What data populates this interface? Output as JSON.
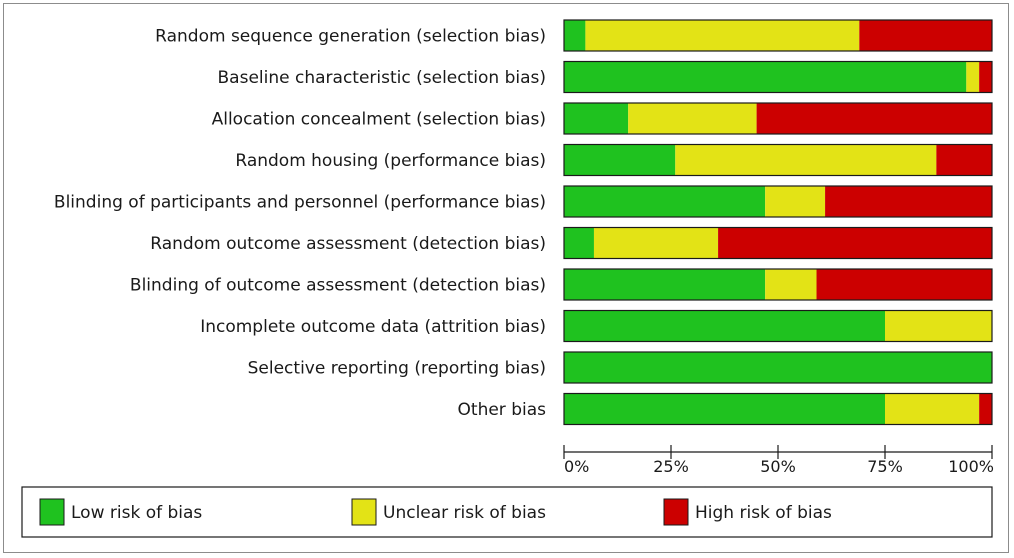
{
  "chart_data": {
    "type": "bar",
    "orientation": "horizontal",
    "stacked": true,
    "percent_scale": true,
    "categories": [
      "Random sequence generation (selection bias)",
      "Baseline characteristic (selection bias)",
      "Allocation concealment (selection bias)",
      "Random housing (performance bias)",
      "Blinding of participants and personnel (performance bias)",
      "Random outcome assessment (detection bias)",
      "Blinding of outcome assessment (detection bias)",
      "Incomplete outcome data (attrition bias)",
      "Selective reporting (reporting bias)",
      "Other bias"
    ],
    "series": [
      {
        "name": "Low risk of bias",
        "color": "#1fc21f",
        "values": [
          5,
          94,
          15,
          26,
          47,
          7,
          47,
          75,
          100,
          75
        ]
      },
      {
        "name": "Unclear risk of bias",
        "color": "#e3e316",
        "values": [
          64,
          3,
          30,
          61,
          14,
          29,
          12,
          25,
          0,
          22
        ]
      },
      {
        "name": "High risk of bias",
        "color": "#cc0000",
        "values": [
          31,
          3,
          55,
          13,
          39,
          64,
          41,
          0,
          0,
          3
        ]
      }
    ],
    "xlim": [
      0,
      100
    ],
    "xticks": [
      "0%",
      "25%",
      "50%",
      "75%",
      "100%"
    ],
    "legend_position": "bottom"
  }
}
